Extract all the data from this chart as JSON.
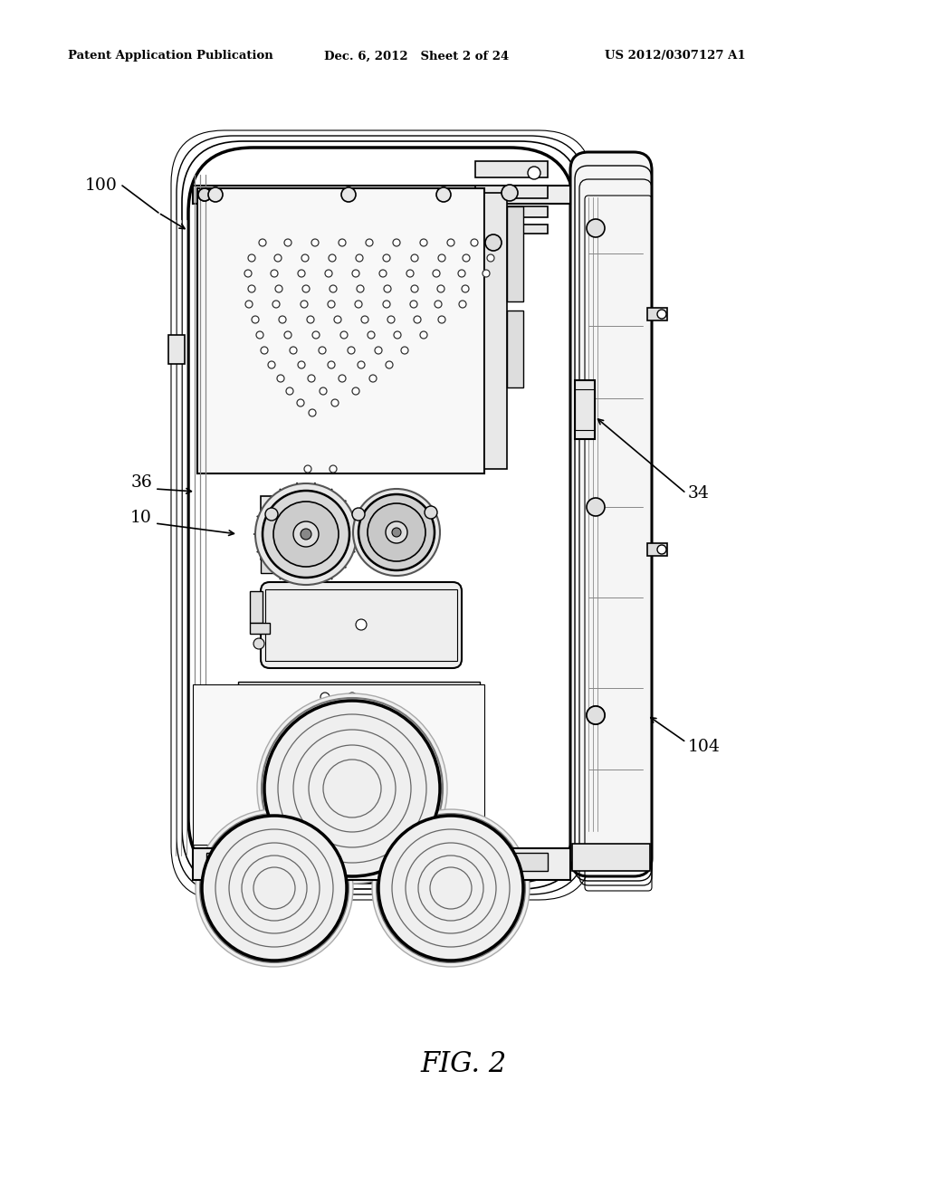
{
  "background_color": "#ffffff",
  "header_left": "Patent Application Publication",
  "header_center": "Dec. 6, 2012   Sheet 2 of 24",
  "header_right": "US 2012/0307127 A1",
  "figure_label": "FIG. 2",
  "label_100": "100",
  "label_36": "36",
  "label_10": "10",
  "label_34": "34",
  "label_104": "104",
  "lc": "#000000",
  "lc_gray": "#888888",
  "fc_white": "#ffffff",
  "fc_light": "#f2f2f2",
  "fc_mid": "#e0e0e0",
  "fc_dark": "#cccccc"
}
